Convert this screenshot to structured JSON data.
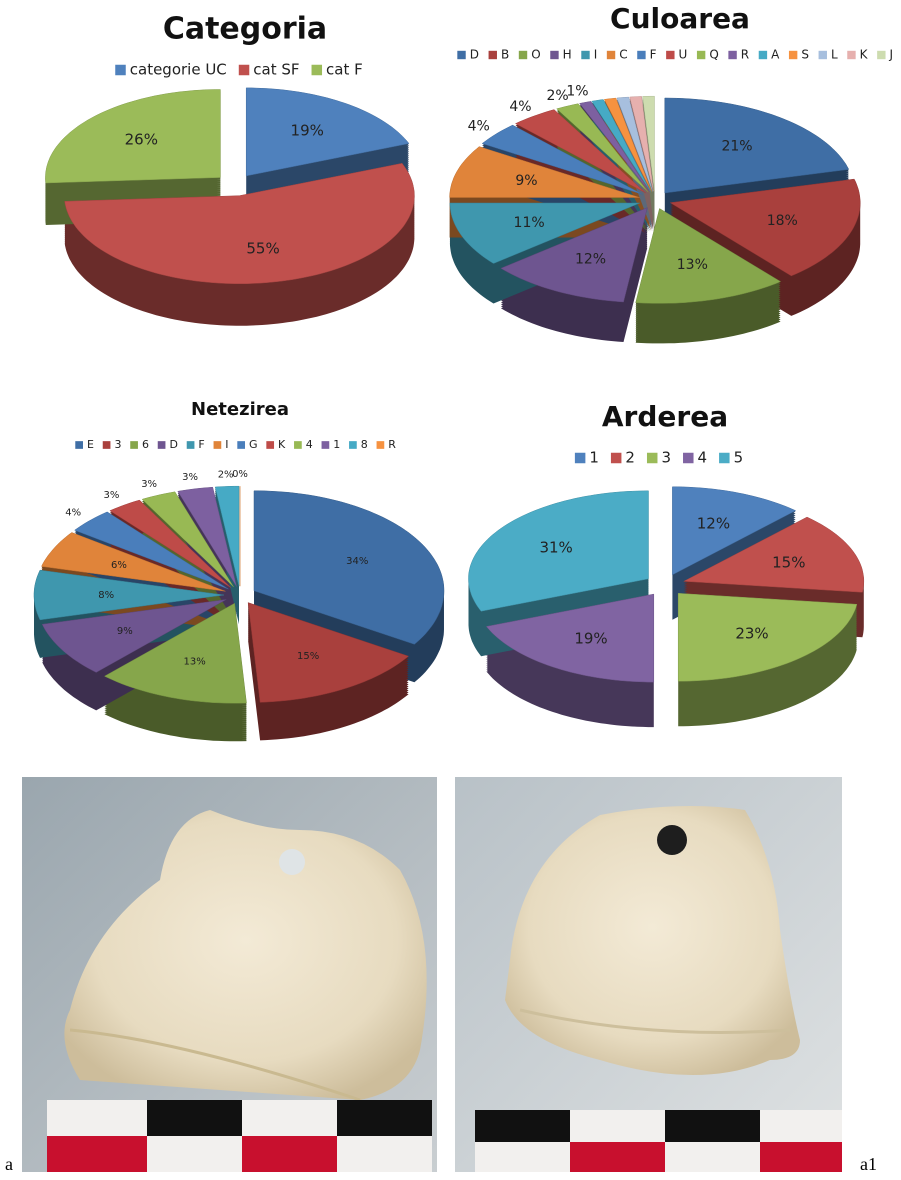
{
  "chart_data": [
    {
      "type": "pie",
      "title": "Categoria",
      "categories": [
        "categorie UC",
        "cat SF",
        "cat F"
      ],
      "values": [
        19,
        55,
        26
      ],
      "value_labels": [
        "19%",
        "55%",
        "26%"
      ],
      "colors": [
        "#4f81bd",
        "#c0504d",
        "#9bbb59"
      ]
    },
    {
      "type": "pie",
      "title": "Culoarea",
      "categories": [
        "D",
        "B",
        "O",
        "H",
        "I",
        "C",
        "F",
        "U",
        "Q",
        "R",
        "A",
        "S",
        "L",
        "K",
        "J"
      ],
      "values": [
        21,
        18,
        13,
        12,
        11,
        9,
        4,
        4,
        2,
        1,
        1,
        1,
        1,
        1,
        1
      ],
      "value_labels": [
        "21%",
        "18%",
        "13%",
        "12%",
        "11%",
        "9%",
        "4%",
        "4%",
        "2%",
        "1%",
        null,
        null,
        null,
        null,
        null
      ],
      "colors": [
        "#3f6ea5",
        "#a9403d",
        "#86a64b",
        "#6e5590",
        "#3f97ae",
        "#e0843a",
        "#4a7ebb",
        "#be4b48",
        "#98b954",
        "#7d60a0",
        "#46aac5",
        "#f69240",
        "#a7bfde",
        "#e6b0ae",
        "#cddcaf"
      ]
    },
    {
      "type": "pie",
      "title": "Netezirea",
      "categories": [
        "E",
        "3",
        "6",
        "D",
        "F",
        "I",
        "G",
        "K",
        "4",
        "1",
        "8",
        "R"
      ],
      "values": [
        34,
        15,
        13,
        9,
        8,
        6,
        4,
        3,
        3,
        3,
        2,
        0
      ],
      "value_labels": [
        "34%",
        "15%",
        "13%",
        "9%",
        "8%",
        "6%",
        "4%",
        "3%",
        "3%",
        "3%",
        "2%",
        "0%"
      ],
      "colors": [
        "#3f6ea5",
        "#a9403d",
        "#86a64b",
        "#6e5590",
        "#3f97ae",
        "#e0843a",
        "#4a7ebb",
        "#be4b48",
        "#98b954",
        "#7d60a0",
        "#46aac5",
        "#f69240"
      ]
    },
    {
      "type": "pie",
      "title": "Arderea",
      "categories": [
        "1",
        "2",
        "3",
        "4",
        "5"
      ],
      "values": [
        12,
        15,
        23,
        19,
        31
      ],
      "value_labels": [
        "12%",
        "15%",
        "23%",
        "19%",
        "31%"
      ],
      "colors": [
        "#4f81bd",
        "#c0504d",
        "#9bbb59",
        "#8064a2",
        "#4bacc6"
      ]
    }
  ],
  "photos": [
    {
      "label": "a"
    },
    {
      "label": "a1"
    }
  ]
}
